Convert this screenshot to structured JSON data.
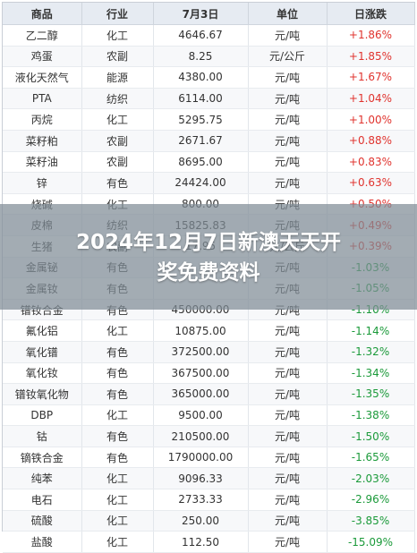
{
  "table": {
    "headers": [
      "商品",
      "行业",
      "7月3日",
      "单位",
      "日涨跌"
    ],
    "rows": [
      {
        "name": "乙二醇",
        "sector": "化工",
        "price": "4646.67",
        "unit": "元/吨",
        "change": "+1.86%",
        "dir": "up"
      },
      {
        "name": "鸡蛋",
        "sector": "农副",
        "price": "8.25",
        "unit": "元/公斤",
        "change": "+1.85%",
        "dir": "up"
      },
      {
        "name": "液化天然气",
        "sector": "能源",
        "price": "4380.00",
        "unit": "元/吨",
        "change": "+1.67%",
        "dir": "up"
      },
      {
        "name": "PTA",
        "sector": "纺织",
        "price": "6114.00",
        "unit": "元/吨",
        "change": "+1.04%",
        "dir": "up"
      },
      {
        "name": "丙烷",
        "sector": "化工",
        "price": "5295.75",
        "unit": "元/吨",
        "change": "+1.00%",
        "dir": "up"
      },
      {
        "name": "菜籽粕",
        "sector": "农副",
        "price": "2671.67",
        "unit": "元/吨",
        "change": "+0.88%",
        "dir": "up"
      },
      {
        "name": "菜籽油",
        "sector": "农副",
        "price": "8695.00",
        "unit": "元/吨",
        "change": "+0.83%",
        "dir": "up"
      },
      {
        "name": "锌",
        "sector": "有色",
        "price": "24424.00",
        "unit": "元/吨",
        "change": "+0.63%",
        "dir": "up"
      },
      {
        "name": "烧碱",
        "sector": "化工",
        "price": "800.00",
        "unit": "元/吨",
        "change": "+0.50%",
        "dir": "up"
      },
      {
        "name": "皮棉",
        "sector": "纺织",
        "price": "15825.83",
        "unit": "元/吨",
        "change": "+0.49%",
        "dir": "up"
      },
      {
        "name": "生猪",
        "sector": "农副",
        "price": "17.95",
        "unit": "元/公斤",
        "change": "+0.39%",
        "dir": "up"
      },
      {
        "name": "金属铋",
        "sector": "有色",
        "price": "",
        "unit": "元/吨",
        "change": "-1.03%",
        "dir": "down"
      },
      {
        "name": "金属钕",
        "sector": "有色",
        "price": "",
        "unit": "元/吨",
        "change": "-1.05%",
        "dir": "down"
      },
      {
        "name": "镨钕合金",
        "sector": "有色",
        "price": "450000.00",
        "unit": "元/吨",
        "change": "-1.10%",
        "dir": "down"
      },
      {
        "name": "氟化铝",
        "sector": "化工",
        "price": "10875.00",
        "unit": "元/吨",
        "change": "-1.14%",
        "dir": "down"
      },
      {
        "name": "氧化镨",
        "sector": "有色",
        "price": "372500.00",
        "unit": "元/吨",
        "change": "-1.32%",
        "dir": "down"
      },
      {
        "name": "氧化钕",
        "sector": "有色",
        "price": "367500.00",
        "unit": "元/吨",
        "change": "-1.34%",
        "dir": "down"
      },
      {
        "name": "镨钕氧化物",
        "sector": "有色",
        "price": "365000.00",
        "unit": "元/吨",
        "change": "-1.35%",
        "dir": "down"
      },
      {
        "name": "DBP",
        "sector": "化工",
        "price": "9500.00",
        "unit": "元/吨",
        "change": "-1.38%",
        "dir": "down"
      },
      {
        "name": "钴",
        "sector": "有色",
        "price": "210500.00",
        "unit": "元/吨",
        "change": "-1.50%",
        "dir": "down"
      },
      {
        "name": "镝铁合金",
        "sector": "有色",
        "price": "1790000.00",
        "unit": "元/吨",
        "change": "-1.65%",
        "dir": "down"
      },
      {
        "name": "纯苯",
        "sector": "化工",
        "price": "9096.33",
        "unit": "元/吨",
        "change": "-2.03%",
        "dir": "down"
      },
      {
        "name": "电石",
        "sector": "化工",
        "price": "2733.33",
        "unit": "元/吨",
        "change": "-2.96%",
        "dir": "down"
      },
      {
        "name": "硫酸",
        "sector": "化工",
        "price": "250.00",
        "unit": "元/吨",
        "change": "-3.85%",
        "dir": "down"
      },
      {
        "name": "盐酸",
        "sector": "化工",
        "price": "112.50",
        "unit": "元/吨",
        "change": "-15.09%",
        "dir": "down"
      }
    ]
  },
  "overlay": {
    "title_line1": "2024年12月7日新澳天天开",
    "title_line2": "奖免费资料"
  },
  "colors": {
    "up": "#e0332e",
    "down": "#1b9a3a",
    "header_bg": "#e6ebf2"
  }
}
